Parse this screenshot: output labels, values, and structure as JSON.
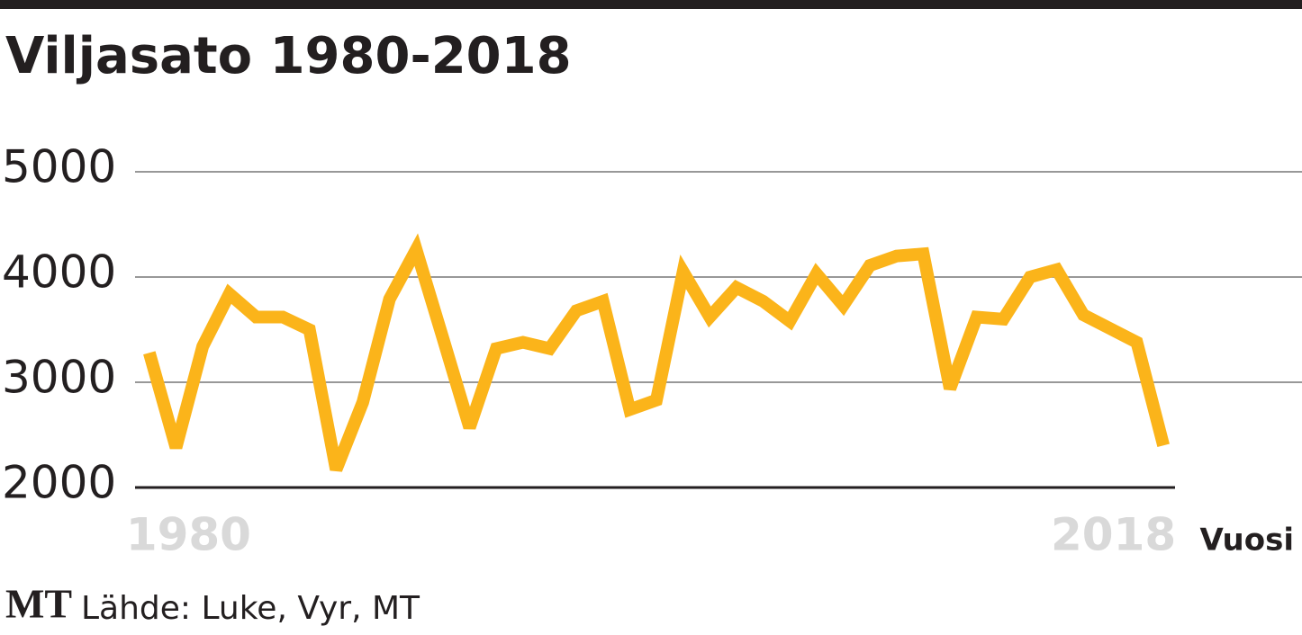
{
  "chart_data": {
    "type": "line",
    "title": "Viljasato 1980-2018",
    "x": [
      1980,
      1981,
      1982,
      1983,
      1984,
      1985,
      1986,
      1987,
      1988,
      1989,
      1990,
      1991,
      1992,
      1993,
      1994,
      1995,
      1996,
      1997,
      1998,
      1999,
      2000,
      2001,
      2002,
      2003,
      2004,
      2005,
      2006,
      2007,
      2008,
      2009,
      2010,
      2011,
      2012,
      2013,
      2014,
      2015,
      2016,
      2017,
      2018
    ],
    "series": [
      {
        "color": "#fbb41a",
        "values": [
          3280,
          2380,
          3340,
          3840,
          3620,
          3620,
          3500,
          2170,
          2810,
          3790,
          4260,
          3420,
          2570,
          3320,
          3380,
          3320,
          3680,
          3770,
          2740,
          2830,
          4050,
          3620,
          3900,
          3770,
          3580,
          4030,
          3730,
          4110,
          4200,
          4220,
          2940,
          3620,
          3600,
          4000,
          4070,
          3640,
          3510,
          3380,
          2400
        ]
      }
    ],
    "xlim": [
      1979.5,
      2018.5
    ],
    "xticks": [
      1980,
      2018
    ],
    "x_label": "Vuosi",
    "ylim": [
      2000,
      5000
    ],
    "yticks": [
      2000,
      3000,
      4000,
      5000
    ],
    "grid": true,
    "logo": "MT",
    "source": "Lähde: Luke, Vyr, MT"
  }
}
